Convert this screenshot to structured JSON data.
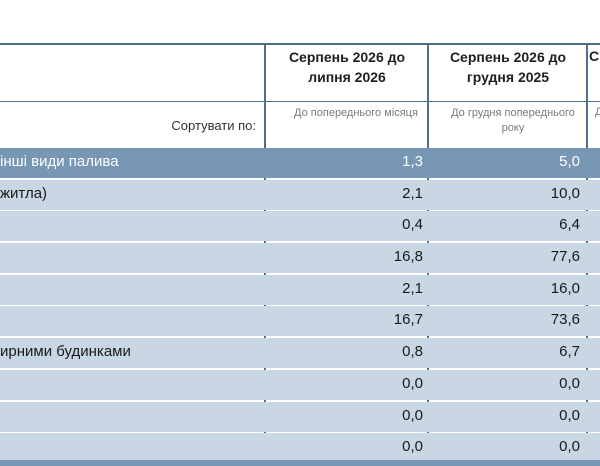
{
  "header": {
    "col1_title": "Серпень 2026 до липня 2026",
    "col2_title": "Серпень 2026 до грудня 2025",
    "col3_title_partial": "С"
  },
  "subheader": {
    "sort_label": "Сортувати по:",
    "col1_sub": "До попереднього місяця",
    "col2_sub": "До грудня попереднього року",
    "col3_sub_partial": "Д"
  },
  "rows": [
    {
      "label": " інші види палива",
      "v1": "1,3",
      "v2": "5,0",
      "kind": "category"
    },
    {
      "label": "житла)",
      "v1": "2,1",
      "v2": "10,0",
      "kind": "item"
    },
    {
      "label": "",
      "v1": "0,4",
      "v2": "6,4",
      "kind": "item"
    },
    {
      "label": "",
      "v1": "16,8",
      "v2": "77,6",
      "kind": "item"
    },
    {
      "label": "",
      "v1": "2,1",
      "v2": "16,0",
      "kind": "item"
    },
    {
      "label": "",
      "v1": "16,7",
      "v2": "73,6",
      "kind": "item"
    },
    {
      "label": "ирними будинками",
      "v1": "0,8",
      "v2": "6,7",
      "kind": "item"
    },
    {
      "label": "",
      "v1": "0,0",
      "v2": "0,0",
      "kind": "item"
    },
    {
      "label": "",
      "v1": "0,0",
      "v2": "0,0",
      "kind": "item"
    },
    {
      "label": "",
      "v1": "0,0",
      "v2": "0,0",
      "kind": "item"
    }
  ]
}
